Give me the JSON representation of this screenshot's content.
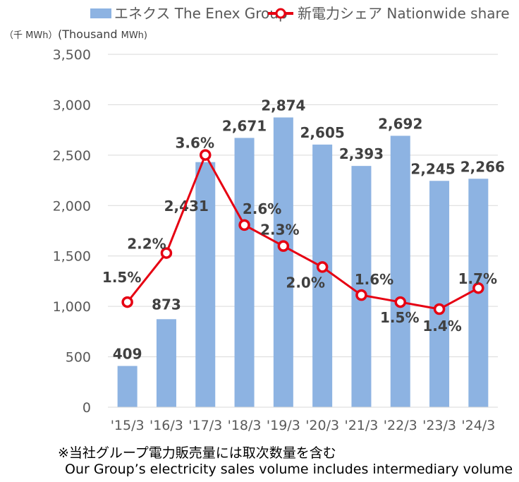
{
  "legend": {
    "bars_label": "エネクス The Enex Group",
    "line_label": "新電力シェア Nationwide share"
  },
  "unit_label_jp": "（千 MWh）",
  "unit_label_en_main": "(Thousand ",
  "unit_label_en_unit": "MWh)",
  "footnote": {
    "jp": "※当社グループ電力販売量には取次数量を含む",
    "en": "Our Group’s electricity sales volume includes intermediary volume"
  },
  "colors": {
    "bar": "#8db3e2",
    "line": "#e60012",
    "marker_fill": "#ffffff",
    "grid": "#d9d9d9"
  },
  "chart_data": {
    "type": "bar",
    "categories": [
      "'15/3",
      "'16/3",
      "'17/3",
      "'18/3",
      "'19/3",
      "'20/3",
      "'21/3",
      "'22/3",
      "'23/3",
      "'24/3"
    ],
    "series": [
      {
        "name": "エネクス The Enex Group",
        "type": "bar",
        "values": [
          409,
          873,
          2431,
          2671,
          2874,
          2605,
          2393,
          2692,
          2245,
          2266
        ],
        "labels": [
          "409",
          "873",
          "2,431",
          "2,671",
          "2,874",
          "2,605",
          "2,393",
          "2,692",
          "2,245",
          "2,266"
        ]
      },
      {
        "name": "新電力シェア Nationwide share",
        "type": "line",
        "values": [
          1.5,
          2.2,
          3.6,
          2.6,
          2.3,
          2.0,
          1.6,
          1.5,
          1.4,
          1.7
        ],
        "labels": [
          "1.5%",
          "2.2%",
          "3.6%",
          "2.6%",
          "2.3%",
          "2.0%",
          "1.6%",
          "1.5%",
          "1.4%",
          "1.7%"
        ]
      }
    ],
    "y_ticks": [
      "0",
      "500",
      "1,000",
      "1,500",
      "2,000",
      "2,500",
      "3,000",
      "3,500"
    ],
    "ylim": [
      0,
      3500
    ],
    "grid": true,
    "legend_position": "top"
  }
}
